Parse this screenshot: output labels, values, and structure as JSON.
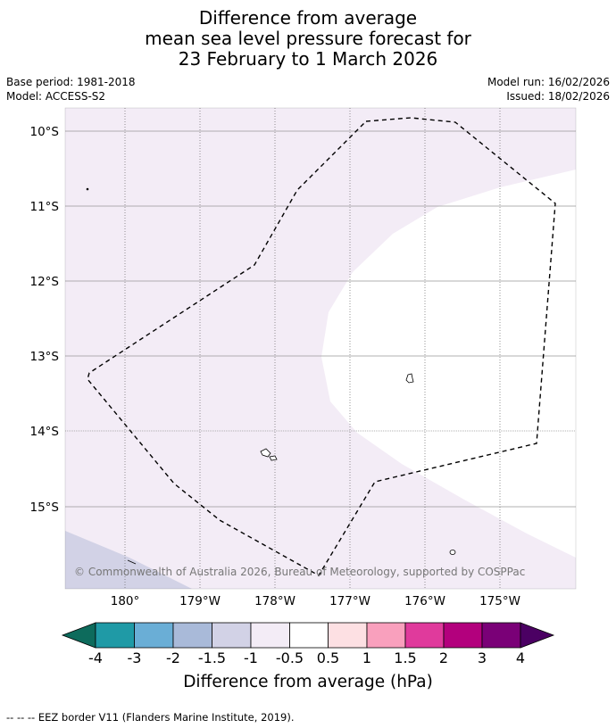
{
  "title": {
    "line1": "Difference from average",
    "line2": "mean sea level pressure forecast for",
    "line3": "23 February to 1 March 2026"
  },
  "meta": {
    "base_period": "Base period: 1981-2018",
    "model": "Model: ACCESS-S2",
    "model_run": "Model run: 16/02/2026",
    "issued": "Issued: 18/02/2026"
  },
  "map": {
    "lat_labels": [
      "10°S",
      "11°S",
      "12°S",
      "13°S",
      "14°S",
      "15°S"
    ],
    "lon_labels": [
      "180°",
      "179°W",
      "178°W",
      "177°W",
      "176°W",
      "175°W"
    ],
    "copyright": "© Commonwealth of Australia 2026, Bureau of Meteorology, supported by COSPPac"
  },
  "colorbar": {
    "title": "Difference from average (hPa)",
    "tick_labels": [
      "-4",
      "-3",
      "-2",
      "-1.5",
      "-1",
      "-0.5",
      "0.5",
      "1",
      "1.5",
      "2",
      "3",
      "4"
    ],
    "colors": {
      "below_min": "#0d6b5c",
      "c1": "#1f9aa6",
      "c2": "#6aaed6",
      "c3": "#a9bad9",
      "c4": "#d2d2e6",
      "c5": "#f3ecf6",
      "c6": "#ffffff",
      "c7": "#fde0e3",
      "c8": "#f9a0bd",
      "c9": "#e03a9c",
      "c10": "#b3007d",
      "c11": "#7a0077",
      "above_max": "#4b0063"
    }
  },
  "footnote": "--  --  -- EEZ border V11 (Flanders Marine Institute, 2019)."
}
